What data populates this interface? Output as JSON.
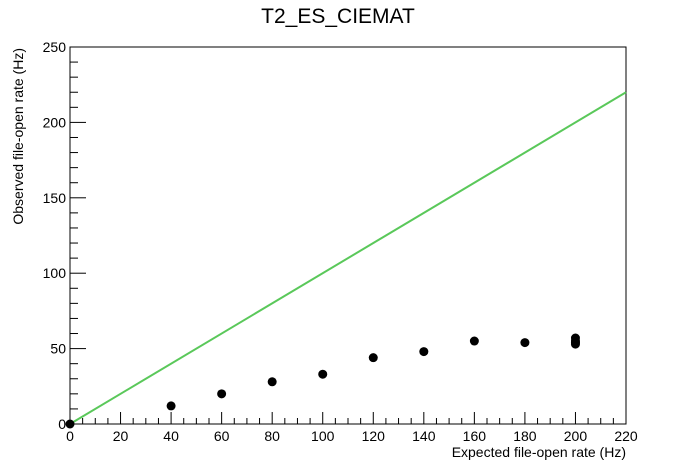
{
  "chart_data": {
    "type": "scatter",
    "title": "T2_ES_CIEMAT",
    "xlabel": "Expected file-open rate (Hz)",
    "ylabel": "Observed file-open rate (Hz)",
    "xlim": [
      0,
      220
    ],
    "ylim": [
      0,
      250
    ],
    "xticks": [
      "0",
      "20",
      "40",
      "60",
      "80",
      "100",
      "120",
      "140",
      "160",
      "180",
      "200",
      "220"
    ],
    "yticks": [
      "0",
      "50",
      "100",
      "150",
      "200",
      "250"
    ],
    "grid": false,
    "legend": "none",
    "series": [
      {
        "kind": "points",
        "color": "#000000",
        "x": [
          0,
          40,
          60,
          80,
          100,
          120,
          140,
          160,
          180,
          200,
          200,
          200,
          200
        ],
        "y": [
          0,
          12,
          20,
          28,
          33,
          44,
          48,
          55,
          54,
          57,
          55,
          54,
          53
        ]
      },
      {
        "kind": "line",
        "color": "#5ac85a",
        "x": [
          0,
          220
        ],
        "y": [
          0,
          220
        ]
      }
    ]
  }
}
